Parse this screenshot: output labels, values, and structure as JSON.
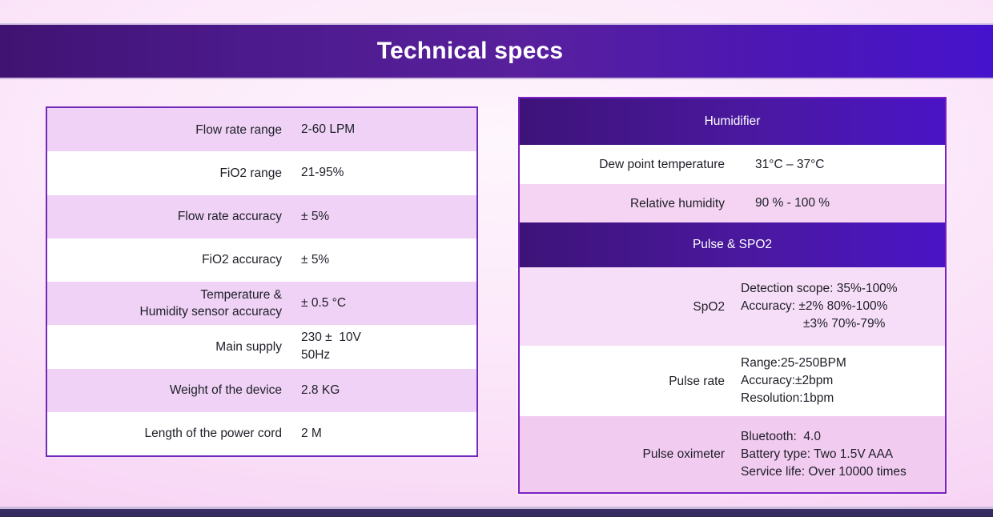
{
  "title": "Technical specs",
  "colors": {
    "banner_gradient_left": "#401372",
    "banner_gradient_right": "#4613cd",
    "section_header_gradient_left": "#3e1378",
    "section_header_gradient_right": "#4a14c6",
    "left_table_border": "#6f2abc",
    "right_table_border": "#7b22c4",
    "alt_row_lilac": "#efd2f5",
    "alt_row_pink": "#f4d4f2",
    "background_pink": "#f8d6f5",
    "bottom_bar": "#3a2f66",
    "text": "#1e1e28",
    "header_text": "#ffffff"
  },
  "left_table": {
    "rows": [
      {
        "label_lines": [
          "Flow rate range"
        ],
        "value_lines": [
          "2-60 LPM"
        ]
      },
      {
        "label_lines": [
          "FiO2 range"
        ],
        "value_lines": [
          "21-95%"
        ]
      },
      {
        "label_lines": [
          "Flow rate accuracy"
        ],
        "value_lines": [
          "± 5%"
        ]
      },
      {
        "label_lines": [
          "FiO2 accuracy"
        ],
        "value_lines": [
          "± 5%"
        ]
      },
      {
        "label_lines": [
          "Temperature &",
          "Humidity sensor accuracy"
        ],
        "value_lines": [
          "± 0.5 °C"
        ]
      },
      {
        "label_lines": [
          "Main supply"
        ],
        "value_lines": [
          "230 ±  10V",
          "50Hz"
        ]
      },
      {
        "label_lines": [
          "Weight of the device"
        ],
        "value_lines": [
          "2.8 KG"
        ]
      },
      {
        "label_lines": [
          "Length of the power cord"
        ],
        "value_lines": [
          "2 M"
        ]
      }
    ]
  },
  "right_table": {
    "sections": [
      {
        "header": "Humidifier",
        "rows": [
          {
            "label": "Dew point temperature",
            "value_lines": [
              "31°C – 37°C"
            ]
          },
          {
            "label": "Relative humidity",
            "value_lines": [
              "90 % - 100 %"
            ]
          }
        ]
      },
      {
        "header": "Pulse & SPO2",
        "rows": [
          {
            "label": "SpO2",
            "value_lines": [
              "Detection scope: 35%-100%",
              "Accuracy: ±2% 80%-100%",
              "±3% 70%-79%"
            ]
          },
          {
            "label": "Pulse rate",
            "value_lines": [
              "Range:25-250BPM",
              "Accuracy:±2bpm",
              "Resolution:1bpm"
            ]
          },
          {
            "label": "Pulse oximeter",
            "value_lines": [
              "Bluetooth:  4.0",
              "Battery type: Two 1.5V AAA",
              "Service life: Over 10000 times"
            ]
          }
        ]
      }
    ]
  }
}
